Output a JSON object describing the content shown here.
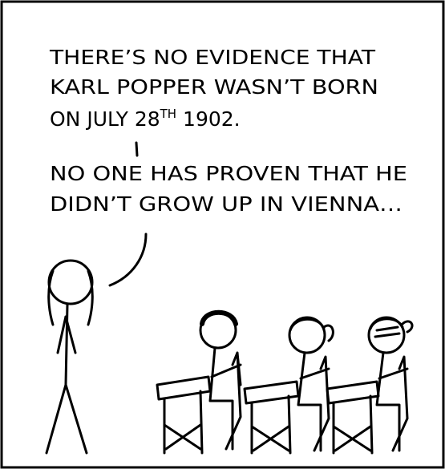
{
  "caption": {
    "paragraphs": [
      {
        "lines": [
          "THERE’S NO EVIDENCE THAT",
          "KARL POPPER WASN’T BORN"
        ],
        "date_line": {
          "before": "ON JULY 28",
          "superscript": "TH",
          "after": " 1902."
        }
      },
      {
        "lines": [
          "NO ONE HAS PROVEN THAT HE",
          "DIDN’T GROW UP IN VIENNA…"
        ]
      }
    ]
  }
}
